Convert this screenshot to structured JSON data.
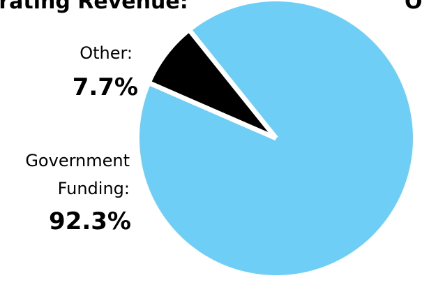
{
  "chart_data": {
    "type": "pie",
    "title_left": "erating Revenue:",
    "title_right": "O",
    "slices": [
      {
        "label_lines": [
          "Other:"
        ],
        "value": 7.7,
        "value_text": "7.7%",
        "color": "#000000"
      },
      {
        "label_lines": [
          "Government",
          "Funding:"
        ],
        "value": 92.3,
        "value_text": "92.3%",
        "color": "#6ecef5"
      }
    ]
  }
}
